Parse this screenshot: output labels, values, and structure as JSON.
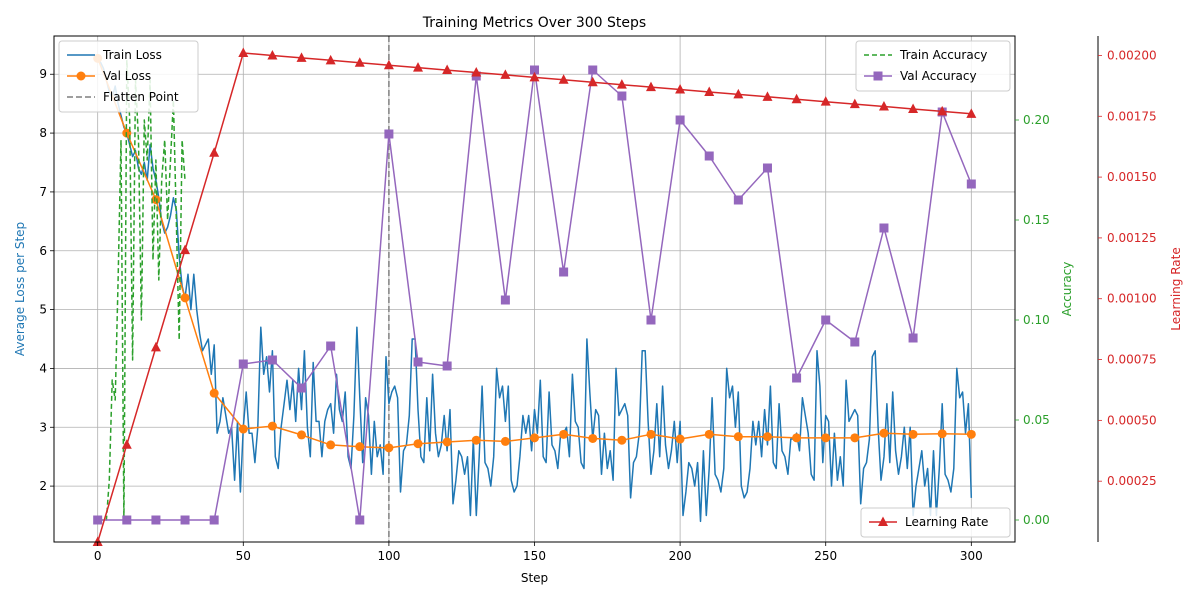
{
  "chart_data": {
    "type": "line",
    "title": "Training Metrics Over 300 Steps",
    "xlabel": "Step",
    "xlim": [
      -15,
      315
    ],
    "xticks": [
      0,
      50,
      100,
      150,
      200,
      250,
      300
    ],
    "grid": true,
    "vertical_marker": {
      "name": "Flatten Point",
      "x": 100,
      "color": "#7f7f7f",
      "style": "dashed"
    },
    "axes": {
      "left": {
        "label": "Average Loss per Step",
        "color": "#1f77b4",
        "lim": [
          1.05,
          9.65
        ],
        "ticks": [
          2,
          3,
          4,
          5,
          6,
          7,
          8,
          9
        ]
      },
      "right1": {
        "label": "Accuracy",
        "color": "#2ca02c",
        "lim": [
          -0.011,
          0.242
        ],
        "ticks": [
          0.0,
          0.05,
          0.1,
          0.15,
          0.2
        ],
        "tick_labels": [
          "0.00",
          "0.05",
          "0.10",
          "0.15",
          "0.20"
        ]
      },
      "right2": {
        "label": "Learning Rate",
        "color": "#d62728",
        "lim": [
          0.0,
          0.00208
        ],
        "ticks": [
          0.00025,
          0.0005,
          0.00075,
          0.001,
          0.00125,
          0.0015,
          0.00175,
          0.002
        ],
        "tick_labels": [
          "0.00025",
          "0.00050",
          "0.00075",
          "0.00100",
          "0.00125",
          "0.00150",
          "0.00175",
          "0.00200"
        ]
      }
    },
    "legends": {
      "loss": {
        "placement": "top-left",
        "entries": [
          "Train Loss",
          "Val Loss",
          "Flatten Point"
        ]
      },
      "accuracy": {
        "placement": "top-right",
        "entries": [
          "Train Accuracy",
          "Val Accuracy"
        ]
      },
      "lr": {
        "placement": "bottom-right",
        "entries": [
          "Learning Rate"
        ]
      }
    },
    "series": [
      {
        "name": "Train Loss",
        "axis": "left",
        "color": "#1f77b4",
        "marker": "none",
        "x_start": 0,
        "x_step": 1,
        "values": [
          9.25,
          9.2,
          9.1,
          8.9,
          8.7,
          8.6,
          8.8,
          8.5,
          8.3,
          8.1,
          8.0,
          7.8,
          7.6,
          7.7,
          7.4,
          7.3,
          7.5,
          7.2,
          7.8,
          7.4,
          7.2,
          6.9,
          6.5,
          6.3,
          6.4,
          6.6,
          6.9,
          6.7,
          5.9,
          5.4,
          5.2,
          5.6,
          5.0,
          5.6,
          5.0,
          4.6,
          4.3,
          4.4,
          4.5,
          3.9,
          4.4,
          2.9,
          3.1,
          3.5,
          3.2,
          2.9,
          3.0,
          2.1,
          3.1,
          1.9,
          3.0,
          3.6,
          2.9,
          2.9,
          2.4,
          3.0,
          4.7,
          3.9,
          4.2,
          3.6,
          4.3,
          2.5,
          2.3,
          3.0,
          3.4,
          3.8,
          3.3,
          3.8,
          3.1,
          4.0,
          3.3,
          4.3,
          3.0,
          2.5,
          4.1,
          3.1,
          3.1,
          2.5,
          3.1,
          3.3,
          3.4,
          2.9,
          3.9,
          3.3,
          3.1,
          3.6,
          2.5,
          2.3,
          3.2,
          4.7,
          3.5,
          2.4,
          3.5,
          3.2,
          2.2,
          3.1,
          2.5,
          2.7,
          2.2,
          4.2,
          3.4,
          3.6,
          3.7,
          3.5,
          1.9,
          2.6,
          2.7,
          3.2,
          4.5,
          4.5,
          3.3,
          2.5,
          2.4,
          3.5,
          2.6,
          3.9,
          2.9,
          2.5,
          2.7,
          3.2,
          2.6,
          3.3,
          1.7,
          2.1,
          2.6,
          2.5,
          2.2,
          2.5,
          1.5,
          2.8,
          1.5,
          2.5,
          3.7,
          2.4,
          2.3,
          2.0,
          2.5,
          4.0,
          3.5,
          3.7,
          3.1,
          3.7,
          2.1,
          1.9,
          2.0,
          2.5,
          3.2,
          2.9,
          3.2,
          2.6,
          3.3,
          2.9,
          3.8,
          2.5,
          2.4,
          3.6,
          2.7,
          2.6,
          2.3,
          2.9,
          2.9,
          3.0,
          2.5,
          3.9,
          3.1,
          3.0,
          2.4,
          2.3,
          4.5,
          3.6,
          2.8,
          3.3,
          3.2,
          2.2,
          2.9,
          2.3,
          2.6,
          2.1,
          4.0,
          3.2,
          3.3,
          3.4,
          3.2,
          1.8,
          2.4,
          2.5,
          2.9,
          4.3,
          4.3,
          3.1,
          2.2,
          2.6,
          3.4,
          2.5,
          3.7,
          2.7,
          2.3,
          2.6,
          3.1,
          2.4,
          3.1,
          1.5,
          1.9,
          2.4,
          2.3,
          2.0,
          2.4,
          1.4,
          2.6,
          1.5,
          2.3,
          3.5,
          2.2,
          2.1,
          1.9,
          2.3,
          4.0,
          3.5,
          3.7,
          3.0,
          3.6,
          2.0,
          1.8,
          1.9,
          2.3,
          3.1,
          2.7,
          3.1,
          2.5,
          3.3,
          2.7,
          3.7,
          2.4,
          2.3,
          3.4,
          2.6,
          2.5,
          2.2,
          2.8,
          2.8,
          2.9,
          2.6,
          3.5,
          3.2,
          2.9,
          2.2,
          2.1,
          4.3,
          3.7,
          2.4,
          3.2,
          3.1,
          2.0,
          2.9,
          2.1,
          2.5,
          2.0,
          3.8,
          3.1,
          3.2,
          3.3,
          3.2,
          1.7,
          2.3,
          2.4,
          2.8,
          4.2,
          4.3,
          3.0,
          2.1,
          2.5,
          3.4,
          2.4,
          3.6,
          2.6,
          2.2,
          2.5,
          3.0,
          2.3,
          3.0,
          1.5,
          2.0,
          2.3,
          2.6,
          2.0,
          2.3,
          1.5,
          2.6,
          1.5,
          2.3,
          3.4,
          2.2,
          2.1,
          1.9,
          2.3,
          4.0,
          3.5,
          3.6,
          2.9,
          3.4,
          1.8
        ]
      },
      {
        "name": "Val Loss",
        "axis": "left",
        "color": "#ff7f0e",
        "marker": "circle",
        "x": [
          0,
          10,
          20,
          30,
          40,
          50,
          60,
          70,
          80,
          90,
          100,
          110,
          120,
          130,
          140,
          150,
          160,
          170,
          180,
          190,
          200,
          210,
          220,
          230,
          240,
          250,
          260,
          270,
          280,
          290,
          300
        ],
        "values": [
          9.27,
          8.0,
          6.87,
          5.2,
          3.58,
          2.97,
          3.02,
          2.87,
          2.7,
          2.67,
          2.65,
          2.72,
          2.75,
          2.78,
          2.76,
          2.82,
          2.88,
          2.81,
          2.78,
          2.88,
          2.8,
          2.88,
          2.84,
          2.84,
          2.82,
          2.82,
          2.82,
          2.9,
          2.88,
          2.89,
          2.88
        ]
      },
      {
        "name": "Train Accuracy",
        "axis": "right1",
        "color": "#2ca02c",
        "marker": "none",
        "style": "dashed",
        "x_start": 0,
        "x_step": 1,
        "values": [
          0.0,
          0.0,
          0.0,
          0.0,
          0.02,
          0.07,
          0.06,
          0.12,
          0.19,
          0.0,
          0.23,
          0.2,
          0.08,
          0.22,
          0.19,
          0.1,
          0.2,
          0.18,
          0.22,
          0.13,
          0.18,
          0.12,
          0.17,
          0.19,
          0.15,
          0.18,
          0.21,
          0.15,
          0.09,
          0.19,
          0.17
        ]
      },
      {
        "name": "Val Accuracy",
        "axis": "right1",
        "color": "#9467bd",
        "marker": "square",
        "x": [
          0,
          10,
          20,
          30,
          40,
          50,
          60,
          70,
          80,
          90,
          100,
          110,
          120,
          130,
          140,
          150,
          160,
          170,
          180,
          190,
          200,
          210,
          220,
          230,
          240,
          250,
          260,
          270,
          280,
          290,
          300
        ],
        "values": [
          0.0,
          0.0,
          0.0,
          0.0,
          0.0,
          0.078,
          0.08,
          0.066,
          0.087,
          0.0,
          0.193,
          0.079,
          0.077,
          0.222,
          0.11,
          0.225,
          0.124,
          0.225,
          0.212,
          0.1,
          0.2,
          0.182,
          0.16,
          0.176,
          0.071,
          0.1,
          0.089,
          0.146,
          0.091,
          0.204,
          0.168
        ]
      },
      {
        "name": "Learning Rate",
        "axis": "right2",
        "color": "#d62728",
        "marker": "triangle",
        "x": [
          0,
          10,
          20,
          30,
          40,
          50,
          60,
          70,
          80,
          90,
          100,
          110,
          120,
          130,
          140,
          150,
          160,
          170,
          180,
          190,
          200,
          210,
          220,
          230,
          240,
          250,
          260,
          270,
          280,
          290,
          300
        ],
        "values": [
          0.0,
          0.0004,
          0.0008,
          0.0012,
          0.0016,
          0.00201,
          0.002,
          0.00199,
          0.00198,
          0.00197,
          0.00196,
          0.00195,
          0.00194,
          0.00193,
          0.00192,
          0.00191,
          0.0019,
          0.00189,
          0.00188,
          0.00187,
          0.00186,
          0.00185,
          0.00184,
          0.00183,
          0.00182,
          0.00181,
          0.0018,
          0.00179,
          0.00178,
          0.00177,
          0.00176
        ]
      }
    ]
  }
}
